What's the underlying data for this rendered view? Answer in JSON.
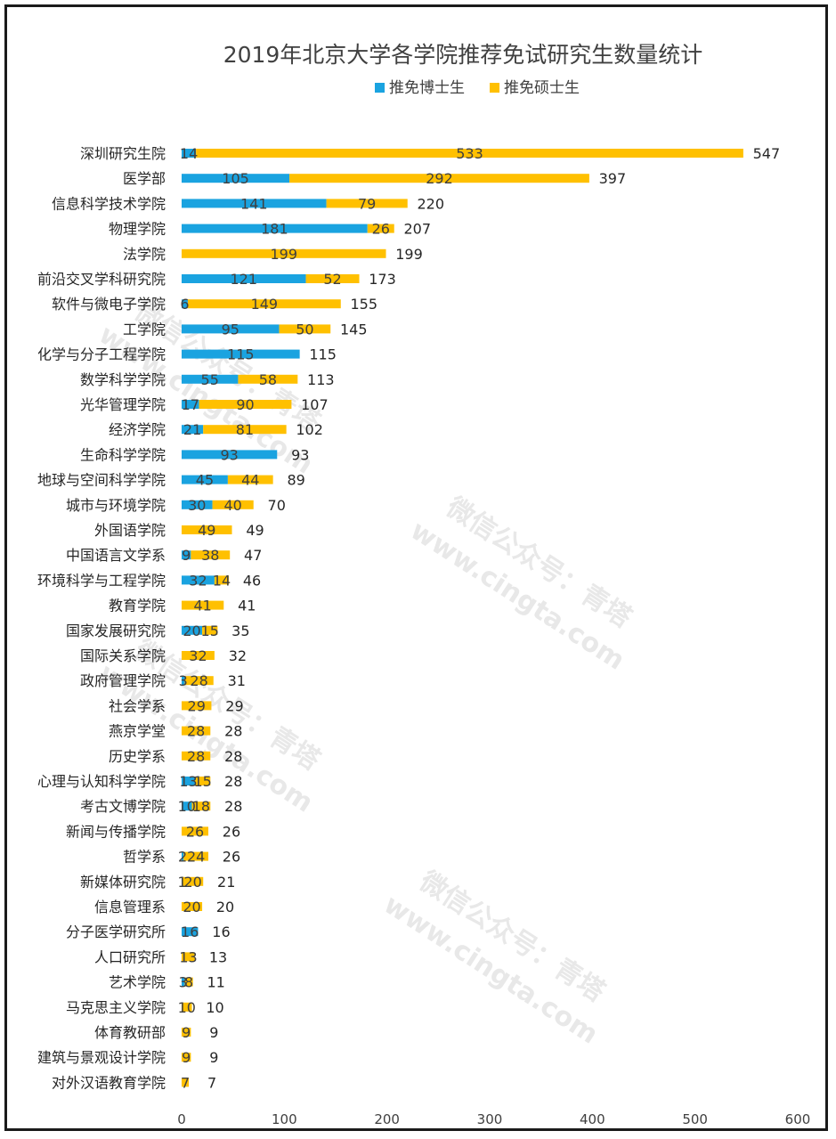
{
  "chart_data": {
    "type": "bar",
    "orientation": "horizontal",
    "stacked": true,
    "title": "2019年北京大学各学院推荐免试研究生数量统计",
    "xlim": [
      0,
      600
    ],
    "xticks": [
      0,
      100,
      200,
      300,
      400,
      500,
      600
    ],
    "grid": false,
    "legend_position": "top",
    "categories": [
      "深圳研究生院",
      "医学部",
      "信息科学技术学院",
      "物理学院",
      "法学院",
      "前沿交叉学科研究院",
      "软件与微电子学院",
      "工学院",
      "化学与分子工程学院",
      "数学科学学院",
      "光华管理学院",
      "经济学院",
      "生命科学学院",
      "地球与空间科学学院",
      "城市与环境学院",
      "外国语学院",
      "中国语言文学系",
      "环境科学与工程学院",
      "教育学院",
      "国家发展研究院",
      "国际关系学院",
      "政府管理学院",
      "社会学系",
      "燕京学堂",
      "历史学系",
      "心理与认知科学学院",
      "考古文博学院",
      "新闻与传播学院",
      "哲学系",
      "新媒体研究院",
      "信息管理系",
      "分子医学研究所",
      "人口研究所",
      "艺术学院",
      "马克思主义学院",
      "体育教研部",
      "建筑与景观设计学院",
      "对外汉语教育学院"
    ],
    "series": [
      {
        "name": "推免博士生",
        "color": "#1aa3e0",
        "values": [
          14,
          105,
          141,
          181,
          null,
          121,
          6,
          95,
          115,
          55,
          17,
          21,
          93,
          45,
          30,
          null,
          9,
          32,
          null,
          20,
          null,
          3,
          null,
          null,
          null,
          13,
          10,
          null,
          2,
          1,
          null,
          16,
          null,
          3,
          null,
          null,
          null,
          null
        ]
      },
      {
        "name": "推免硕士生",
        "color": "#ffc000",
        "values": [
          533,
          292,
          79,
          26,
          199,
          52,
          149,
          50,
          null,
          58,
          90,
          81,
          null,
          44,
          40,
          49,
          38,
          14,
          41,
          15,
          32,
          28,
          29,
          28,
          28,
          15,
          18,
          26,
          24,
          20,
          20,
          null,
          13,
          8,
          10,
          9,
          9,
          7
        ]
      }
    ],
    "totals": [
      547,
      397,
      220,
      207,
      199,
      173,
      155,
      145,
      115,
      113,
      107,
      102,
      93,
      89,
      70,
      49,
      47,
      46,
      41,
      35,
      32,
      31,
      29,
      28,
      28,
      28,
      28,
      26,
      26,
      21,
      20,
      16,
      13,
      11,
      10,
      9,
      9,
      7
    ]
  },
  "watermarks": [
    "微信公众号：青塔",
    "www.cingta.com"
  ]
}
